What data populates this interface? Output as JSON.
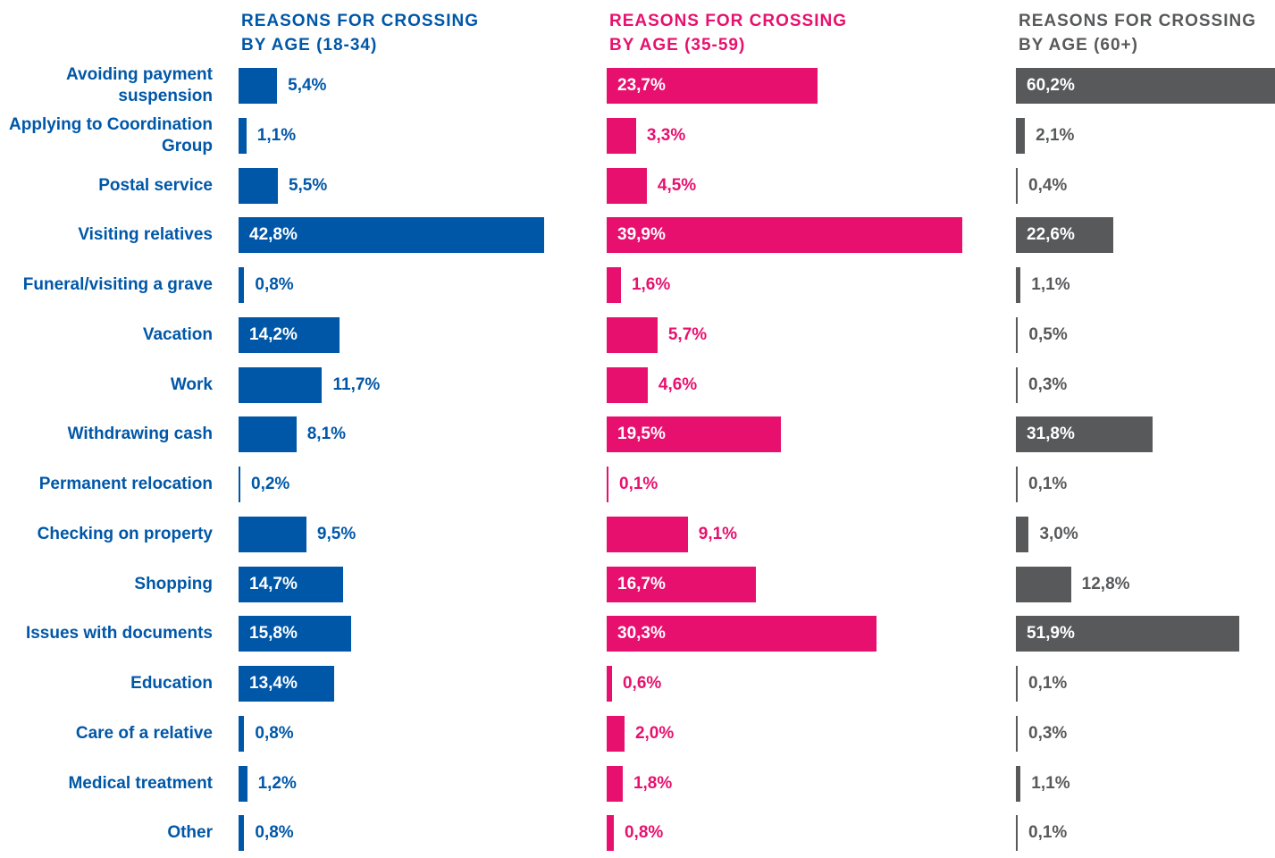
{
  "chart_data": [
    {
      "type": "bar",
      "orientation": "horizontal",
      "title": "REASONS FOR CROSSING BY AGE (18-34)",
      "color": "#0057a8",
      "categories": [
        "Avoiding payment suspension",
        "Applying to Coordination Group",
        "Postal service",
        "Visiting relatives",
        "Funeral/visiting a grave",
        "Vacation",
        "Work",
        "Withdrawing cash",
        "Permanent relocation",
        "Checking on property",
        "Shopping",
        "Issues with documents",
        "Education",
        "Care of a relative",
        "Medical treatment",
        "Other"
      ],
      "values": [
        5.4,
        1.1,
        5.5,
        42.8,
        0.8,
        14.2,
        11.7,
        8.1,
        0.2,
        9.5,
        14.7,
        15.8,
        13.4,
        0.8,
        1.2,
        0.8
      ],
      "value_labels": [
        "5,4%",
        "1,1%",
        "5,5%",
        "42,8%",
        "0,8%",
        "14,2%",
        "11,7%",
        "8,1%",
        "0,2%",
        "9,5%",
        "14,7%",
        "15,8%",
        "13,4%",
        "0,8%",
        "1,2%",
        "0,8%"
      ]
    },
    {
      "type": "bar",
      "orientation": "horizontal",
      "title": "REASONS FOR CROSSING BY AGE (35-59)",
      "color": "#e8106e",
      "values": [
        23.7,
        3.3,
        4.5,
        39.9,
        1.6,
        5.7,
        4.6,
        19.5,
        0.1,
        9.1,
        16.7,
        30.3,
        0.6,
        2.0,
        1.8,
        0.8
      ],
      "value_labels": [
        "23,7%",
        "3,3%",
        "4,5%",
        "39,9%",
        "1,6%",
        "5,7%",
        "4,6%",
        "19,5%",
        "0,1%",
        "9,1%",
        "16,7%",
        "30,3%",
        "0,6%",
        "2,0%",
        "1,8%",
        "0,8%"
      ]
    },
    {
      "type": "bar",
      "orientation": "horizontal",
      "title": "REASONS FOR CROSSING BY AGE (60+)",
      "color": "#58595b",
      "values": [
        60.2,
        2.1,
        0.4,
        22.6,
        1.1,
        0.5,
        0.3,
        31.8,
        0.1,
        3.0,
        12.8,
        51.9,
        0.1,
        0.3,
        1.1,
        0.1
      ],
      "value_labels": [
        "60,2%",
        "2,1%",
        "0,4%",
        "22,6%",
        "1,1%",
        "0,5%",
        "0,3%",
        "31,8%",
        "0,1%",
        "3,0%",
        "12,8%",
        "51,9%",
        "0,1%",
        "0,3%",
        "1,1%",
        "0,1%"
      ]
    }
  ]
}
